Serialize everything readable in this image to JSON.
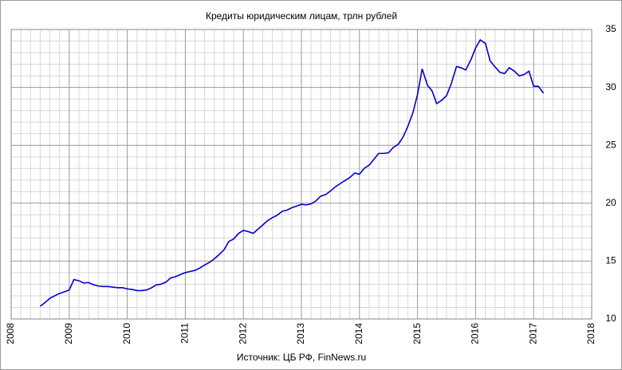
{
  "chart_data": {
    "type": "line",
    "title": "Кредиты юридическим лицам,  трлн рублей",
    "source": "Источник: ЦБ РФ, FinNews.ru",
    "color": "#0000cc",
    "grid": true,
    "xlim": [
      2008,
      2018
    ],
    "xticks": [
      2008,
      2009,
      2010,
      2011,
      2012,
      2013,
      2014,
      2015,
      2016,
      2017,
      2018
    ],
    "ylim": [
      10,
      35
    ],
    "yticks": [
      10,
      15,
      20,
      25,
      30,
      35
    ],
    "x": [
      2008.5,
      2008.58,
      2008.67,
      2008.75,
      2008.83,
      2008.92,
      2009.0,
      2009.08,
      2009.17,
      2009.25,
      2009.33,
      2009.42,
      2009.5,
      2009.58,
      2009.67,
      2009.75,
      2009.83,
      2009.92,
      2010.0,
      2010.08,
      2010.17,
      2010.25,
      2010.33,
      2010.42,
      2010.5,
      2010.58,
      2010.67,
      2010.75,
      2010.83,
      2010.92,
      2011.0,
      2011.08,
      2011.17,
      2011.25,
      2011.33,
      2011.42,
      2011.5,
      2011.58,
      2011.67,
      2011.75,
      2011.83,
      2011.92,
      2012.0,
      2012.08,
      2012.17,
      2012.25,
      2012.33,
      2012.42,
      2012.5,
      2012.58,
      2012.67,
      2012.75,
      2012.83,
      2012.92,
      2013.0,
      2013.08,
      2013.17,
      2013.25,
      2013.33,
      2013.42,
      2013.5,
      2013.58,
      2013.67,
      2013.75,
      2013.83,
      2013.92,
      2014.0,
      2014.08,
      2014.17,
      2014.25,
      2014.33,
      2014.42,
      2014.5,
      2014.58,
      2014.67,
      2014.75,
      2014.83,
      2014.92,
      2015.0,
      2015.08,
      2015.17,
      2015.25,
      2015.33,
      2015.42,
      2015.5,
      2015.58,
      2015.67,
      2015.75,
      2015.83,
      2015.92,
      2016.0,
      2016.08,
      2016.17,
      2016.25,
      2016.33,
      2016.42,
      2016.5,
      2016.58,
      2016.67,
      2016.75,
      2016.83,
      2016.92,
      2017.0,
      2017.08,
      2017.17
    ],
    "values": [
      11.1,
      11.4,
      11.8,
      12.0,
      12.2,
      12.35,
      12.5,
      13.4,
      13.3,
      13.1,
      13.15,
      12.95,
      12.85,
      12.8,
      12.8,
      12.75,
      12.7,
      12.7,
      12.6,
      12.55,
      12.45,
      12.45,
      12.5,
      12.7,
      12.95,
      13.0,
      13.2,
      13.55,
      13.65,
      13.85,
      14.0,
      14.1,
      14.2,
      14.4,
      14.65,
      14.9,
      15.2,
      15.55,
      16.0,
      16.7,
      16.9,
      17.4,
      17.65,
      17.55,
      17.4,
      17.75,
      18.1,
      18.5,
      18.75,
      18.95,
      19.3,
      19.4,
      19.6,
      19.75,
      19.9,
      19.85,
      19.95,
      20.2,
      20.6,
      20.75,
      21.05,
      21.4,
      21.7,
      21.95,
      22.2,
      22.6,
      22.5,
      23.0,
      23.3,
      23.8,
      24.3,
      24.3,
      24.35,
      24.8,
      25.1,
      25.7,
      26.6,
      27.8,
      29.4,
      31.6,
      30.2,
      29.7,
      28.6,
      28.9,
      29.3,
      30.3,
      31.8,
      31.7,
      31.5,
      32.4,
      33.4,
      34.1,
      33.8,
      32.3,
      31.8,
      31.3,
      31.2,
      31.7,
      31.4,
      31.0,
      31.1,
      31.4,
      30.1,
      30.1,
      29.5
    ]
  }
}
